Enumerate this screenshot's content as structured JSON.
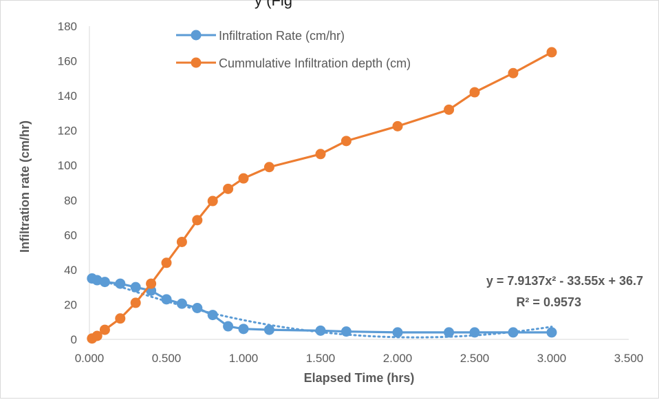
{
  "chart_data": {
    "type": "line",
    "ylabel": "Infiltration rate (cm/hr)",
    "xlabel": "Elapsed Time (hrs)",
    "xlim": [
      0,
      3.5
    ],
    "ylim": [
      0,
      180
    ],
    "x_ticks": [
      "0.000",
      "0.500",
      "1.000",
      "1.500",
      "2.000",
      "2.500",
      "3.000",
      "3.500"
    ],
    "y_ticks": [
      "0",
      "20",
      "40",
      "60",
      "80",
      "100",
      "120",
      "140",
      "160",
      "180"
    ],
    "grid": "none",
    "legend_position": "top-center",
    "series": [
      {
        "name": "Infiltration Rate (cm/hr)",
        "color": "#5B9BD5",
        "marker": "circle",
        "x": [
          0.017,
          0.05,
          0.1,
          0.2,
          0.3,
          0.4,
          0.5,
          0.6,
          0.7,
          0.8,
          0.9,
          1.0,
          1.167,
          1.5,
          1.667,
          2.0,
          2.333,
          2.5,
          2.75,
          3.0
        ],
        "y": [
          35,
          34,
          33,
          32,
          30,
          28,
          23,
          20.5,
          18,
          14,
          7.5,
          6,
          5.5,
          5,
          4.5,
          4,
          4,
          4,
          4,
          4
        ]
      },
      {
        "name": "Cummulative Infiltration depth (cm)",
        "color": "#ED7D31",
        "marker": "circle",
        "x": [
          0.017,
          0.05,
          0.1,
          0.2,
          0.3,
          0.4,
          0.5,
          0.6,
          0.7,
          0.8,
          0.9,
          1.0,
          1.167,
          1.5,
          1.667,
          2.0,
          2.333,
          2.5,
          2.75,
          3.0
        ],
        "y": [
          0.5,
          2,
          5.5,
          12,
          21,
          32,
          44,
          56,
          68.5,
          79.5,
          86.5,
          92.5,
          99,
          106.5,
          114,
          122.5,
          132,
          142,
          153,
          165
        ]
      }
    ],
    "trendline": {
      "type": "polynomial",
      "series": "Infiltration Rate (cm/hr)",
      "color": "#5B9BD5",
      "equation": "y = 7.9137x² - 33.55x + 36.7",
      "r_squared": "R² = 0.9573",
      "coefficients": [
        7.9137,
        -33.55,
        36.7
      ]
    }
  },
  "top_text": "y (Fig"
}
